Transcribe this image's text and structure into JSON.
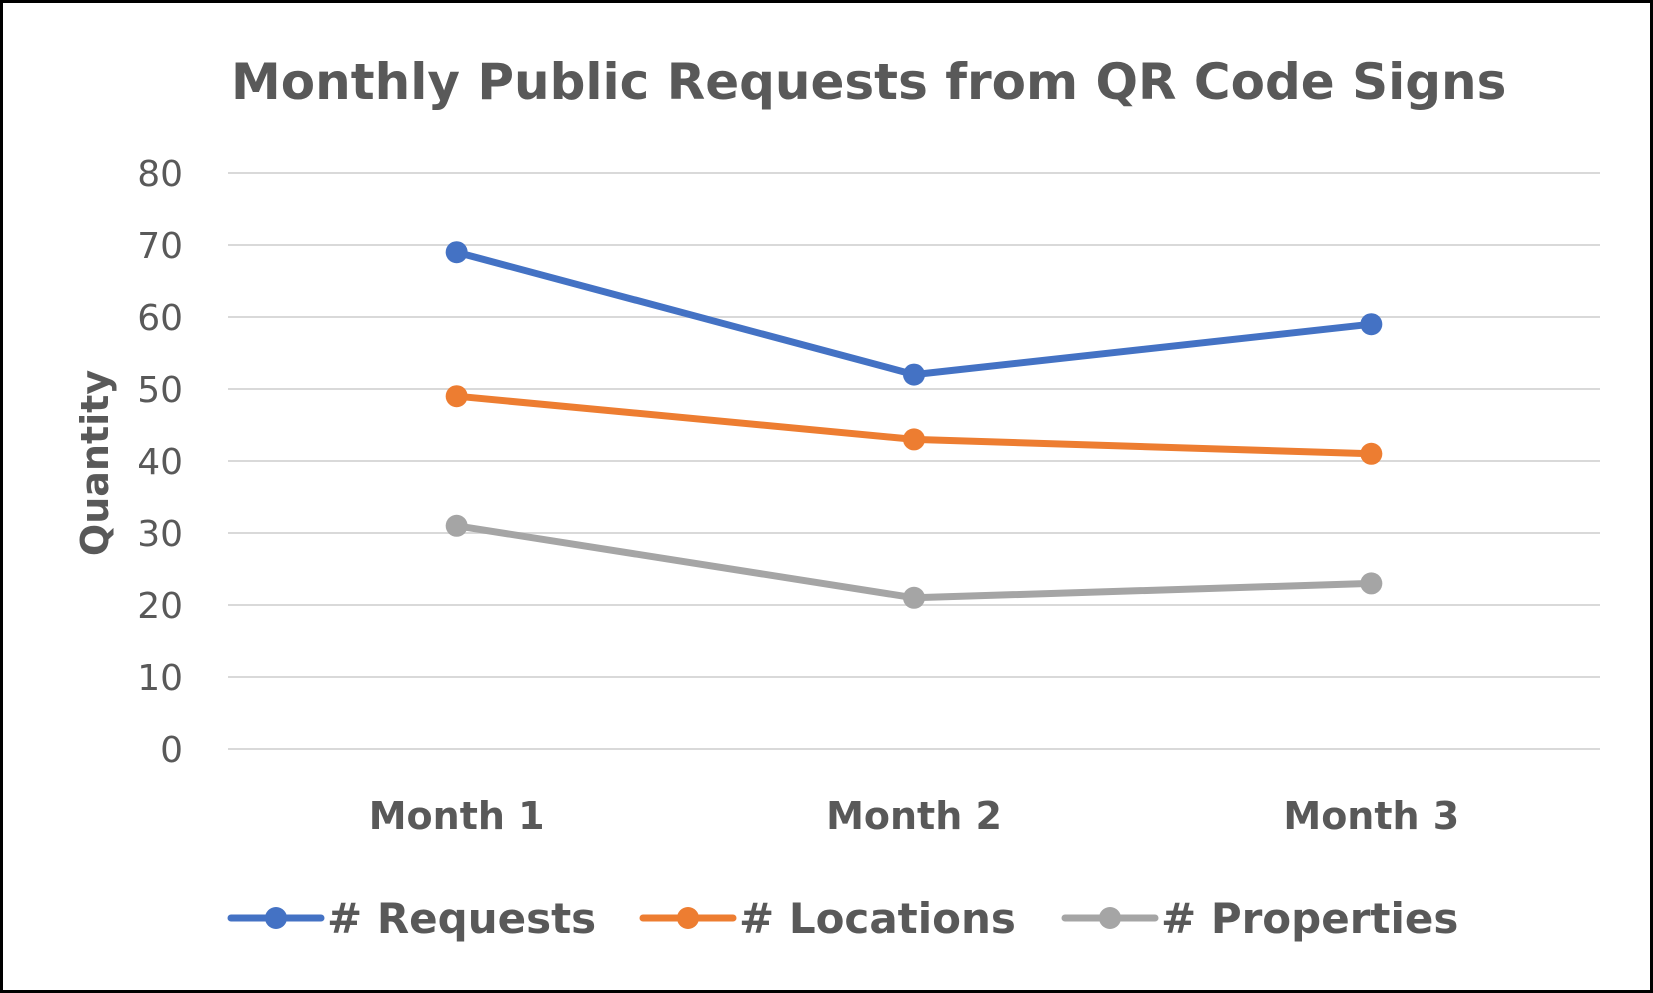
{
  "chart_data": {
    "type": "line",
    "title": "Monthly Public Requests from QR Code Signs",
    "xlabel": "",
    "ylabel": "Quantity",
    "categories": [
      "Month 1",
      "Month 2",
      "Month 3"
    ],
    "ylim": [
      0,
      80
    ],
    "yticks": [
      "0",
      "10",
      "20",
      "30",
      "40",
      "50",
      "60",
      "70",
      "80"
    ],
    "grid": true,
    "legend_position": "bottom",
    "series": [
      {
        "name": "# Requests",
        "values": [
          69,
          52,
          59
        ],
        "color": "#4472C4"
      },
      {
        "name": "# Locations",
        "values": [
          49,
          43,
          41
        ],
        "color": "#ED7D31"
      },
      {
        "name": "# Properties",
        "values": [
          31,
          21,
          23
        ],
        "color": "#A5A5A5"
      }
    ],
    "colors": {
      "gridline": "#D9D9D9",
      "text": "#595959",
      "border": "#000000"
    }
  }
}
